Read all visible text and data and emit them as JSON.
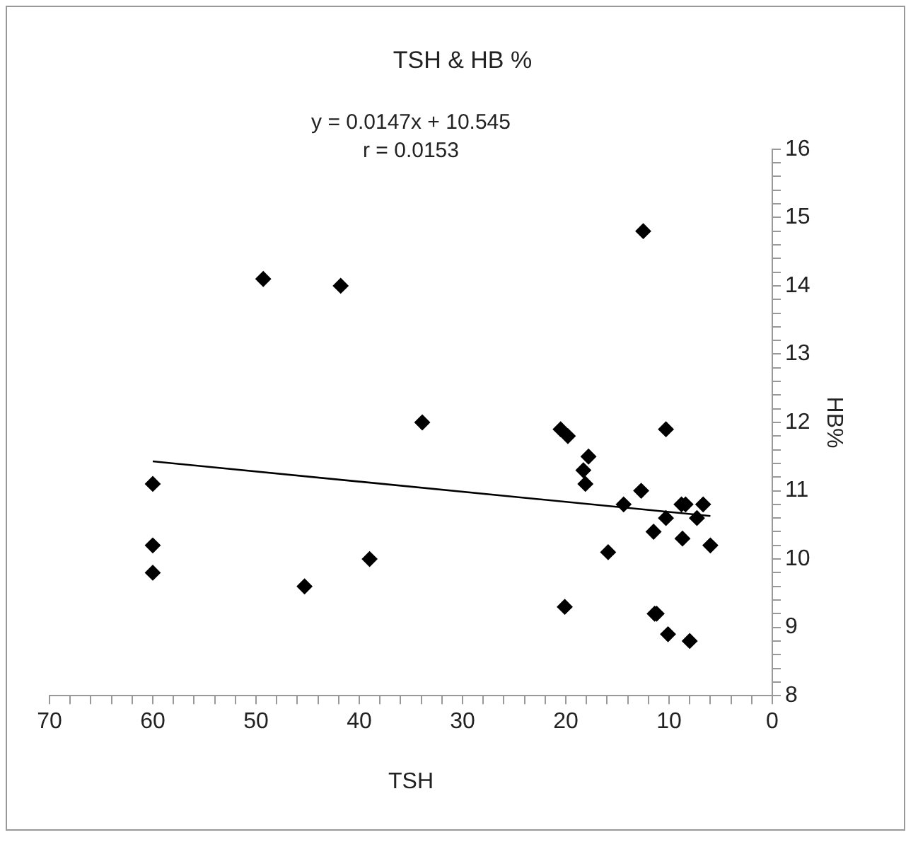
{
  "chart_data": {
    "type": "scatter",
    "title": "TSH & HB %",
    "xlabel": "TSH",
    "ylabel": "HB%",
    "annotations": [
      "y = 0.0147x + 10.545",
      "r = 0.0153"
    ],
    "xlim": [
      70,
      0
    ],
    "xticks": [
      70,
      {
        "value": 68,
        "label": null
      },
      {
        "value": 66,
        "label": null
      },
      {
        "value": 64,
        "label": null
      },
      {
        "value": 62,
        "label": null
      },
      60,
      {
        "value": 58,
        "label": null
      },
      {
        "value": 56,
        "label": null
      },
      {
        "value": 54,
        "label": null
      },
      {
        "value": 52,
        "label": null
      },
      50,
      {
        "value": 48,
        "label": null
      },
      {
        "value": 46,
        "label": null
      },
      {
        "value": 44,
        "label": null
      },
      {
        "value": 42,
        "label": null
      },
      40,
      {
        "value": 38,
        "label": null
      },
      {
        "value": 36,
        "label": null
      },
      {
        "value": 34,
        "label": null
      },
      {
        "value": 32,
        "label": null
      },
      30,
      {
        "value": 28,
        "label": null
      },
      {
        "value": 26,
        "label": null
      },
      {
        "value": 24,
        "label": null
      },
      {
        "value": 22,
        "label": null
      },
      20,
      {
        "value": 18,
        "label": null
      },
      {
        "value": 16,
        "label": null
      },
      {
        "value": 14,
        "label": null
      },
      {
        "value": 12,
        "label": null
      },
      10,
      {
        "value": 8,
        "label": null
      },
      {
        "value": 6,
        "label": null
      },
      {
        "value": 4,
        "label": null
      },
      {
        "value": 2,
        "label": null
      },
      0
    ],
    "ylim": [
      8,
      16
    ],
    "yticks": [
      8,
      {
        "value": 8.2,
        "label": null
      },
      {
        "value": 8.4,
        "label": null
      },
      {
        "value": 8.6,
        "label": null
      },
      {
        "value": 8.8,
        "label": null
      },
      9,
      {
        "value": 9.2,
        "label": null
      },
      {
        "value": 9.4,
        "label": null
      },
      {
        "value": 9.6,
        "label": null
      },
      {
        "value": 9.8,
        "label": null
      },
      10,
      {
        "value": 10.2,
        "label": null
      },
      {
        "value": 10.4,
        "label": null
      },
      {
        "value": 10.6,
        "label": null
      },
      {
        "value": 10.8,
        "label": null
      },
      11,
      {
        "value": 11.2,
        "label": null
      },
      {
        "value": 11.4,
        "label": null
      },
      {
        "value": 11.6,
        "label": null
      },
      {
        "value": 11.8,
        "label": null
      },
      12,
      {
        "value": 12.2,
        "label": null
      },
      {
        "value": 12.4,
        "label": null
      },
      {
        "value": 12.6,
        "label": null
      },
      {
        "value": 12.8,
        "label": null
      },
      13,
      {
        "value": 13.2,
        "label": null
      },
      {
        "value": 13.4,
        "label": null
      },
      {
        "value": 13.6,
        "label": null
      },
      {
        "value": 13.8,
        "label": null
      },
      14,
      {
        "value": 14.2,
        "label": null
      },
      {
        "value": 14.4,
        "label": null
      },
      {
        "value": 14.6,
        "label": null
      },
      {
        "value": 14.8,
        "label": null
      },
      15,
      {
        "value": 15.2,
        "label": null
      },
      {
        "value": 15.4,
        "label": null
      },
      {
        "value": 15.6,
        "label": null
      },
      {
        "value": 15.8,
        "label": null
      },
      16
    ],
    "grid": false,
    "legend": false,
    "marker": "diamond",
    "series": [
      {
        "type": "scatter",
        "color": "#000000",
        "x": [
          12.5,
          20.5,
          19.8,
          10.3,
          17.8,
          18.3,
          18.1,
          12.7,
          14.4,
          8.8,
          8.4,
          6.7,
          10.3,
          7.3,
          11.5,
          8.7,
          6.0,
          15.9,
          20.1,
          11.4,
          11.2,
          10.1,
          8.0,
          49.3,
          41.8,
          33.9,
          60,
          60,
          60,
          45.3,
          39.0
        ],
        "values": [
          14.8,
          11.9,
          11.8,
          11.9,
          11.5,
          11.3,
          11.1,
          11.0,
          10.8,
          10.8,
          10.8,
          10.8,
          10.6,
          10.6,
          10.4,
          10.3,
          10.2,
          10.1,
          9.3,
          9.2,
          9.2,
          8.9,
          8.8,
          14.1,
          14.0,
          12.0,
          11.1,
          10.2,
          9.8,
          9.6,
          10.0
        ]
      },
      {
        "type": "line",
        "color": "#000000",
        "marker": "none",
        "x": [
          60,
          6
        ],
        "values": [
          11.43,
          10.63
        ]
      }
    ]
  }
}
